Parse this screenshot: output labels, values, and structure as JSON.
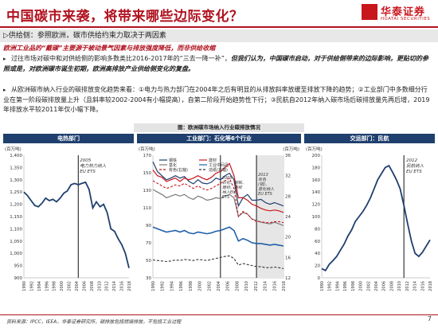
{
  "header": {
    "title": "中国碳市来袭，将带来哪些边际变化？",
    "logo_name": "华泰证券",
    "logo_sub": "HUATAI SECURITIES"
  },
  "section": {
    "label": "▷供给侧：参照欧洲，碳市供给约束力取决于两因素"
  },
  "highlight": "欧洲工业品的“戴碳”主要源于被动景气因素与排放强度降低，而非供给收缩",
  "paragraph1": {
    "part1": "过往市场对碳中和对供给侧的影响多数类比2016-2017年的“三去一降一补”，",
    "part2": "但我们认为，中国碳市启动，对于供给侧带来的边际影响，更贴切的参照或是，对欧洲碳市诞生初期，欧洲高排放产业供给侧变化的复盘。"
  },
  "paragraph2": "从欧洲碳市纳入行业的碳排放变化趋势来看：①电力与热力部门在2004年之后有明显的从排放斜率放缓至排放下降的趋势；②工业部门中多数细分行业在第一阶段碳排放量上升（且斜率较2002-2004有小幅提高），自第二阶段开始趋势性下行；③民航自2012年纳入碳市场后碳排放量先再后增，2019年排放水平较2011年仅小幅下降。",
  "figure": {
    "title": "图：欧洲碳市场纳入行业碳排放情况"
  },
  "panels": {
    "power": {
      "head": "电热部门",
      "unit": "(百万吨)",
      "annotation": [
        "2005",
        "电力热力纳入",
        "EU ETS"
      ],
      "ylim": [
        900,
        1400
      ],
      "yticks": [
        "1,400",
        "1,350",
        "1,300",
        "1,250",
        "1,200",
        "1,150",
        "1,100",
        "1,050",
        "1,000",
        "950",
        "900"
      ]
    },
    "industry": {
      "head": "工业部门：石化等6个行业",
      "unit_left": "(百万吨)",
      "unit_right": "(百万吨)",
      "legend": [
        "钢铁",
        "建材",
        "基化",
        "工业中间品",
        "有色(右轴)",
        "造纸(右轴)"
      ],
      "annot1": [
        "2005",
        "石化、钢铁、",
        "建材、造纸",
        "纳入EU",
        "ETS"
      ],
      "annot2": [
        "2013",
        "有色",
        "(铝)、",
        "基化纳入",
        "EU ETS"
      ],
      "ylim_left": [
        20,
        170
      ],
      "ylim_right": [
        12,
        36
      ],
      "yticks_left": [
        "170",
        "150",
        "130",
        "110",
        "90",
        "70",
        "50",
        "30"
      ],
      "yticks_right": [
        "36",
        "32",
        "28",
        "24",
        "20",
        "16",
        "12"
      ]
    },
    "aviation": {
      "head": "交运部门：民航",
      "unit": "(百万吨)",
      "annotation": [
        "2012",
        "民航纳入",
        "EU ETS"
      ],
      "ylim": [
        0,
        200
      ],
      "yticks": [
        "200",
        "180",
        "160",
        "140",
        "120",
        "100",
        "80",
        "60",
        "40",
        "20",
        "0"
      ]
    },
    "years": [
      "1990",
      "1992",
      "1994",
      "1996",
      "1998",
      "2000",
      "2002",
      "2004",
      "2006",
      "2008",
      "2010",
      "2012",
      "2014",
      "2016",
      "2018"
    ]
  },
  "chart_data": [
    {
      "type": "line",
      "title": "电热部门",
      "ylabel": "(百万吨)",
      "ylim": [
        900,
        1400
      ],
      "x": [
        1990,
        1991,
        1992,
        1993,
        1994,
        1995,
        1996,
        1997,
        1998,
        1999,
        2000,
        2001,
        2002,
        2003,
        2004,
        2005,
        2006,
        2007,
        2008,
        2009,
        2010,
        2011,
        2012,
        2013,
        2014,
        2015,
        2016,
        2017,
        2018,
        2019
      ],
      "series": [
        {
          "values": [
            1250,
            1235,
            1215,
            1195,
            1190,
            1205,
            1225,
            1215,
            1220,
            1210,
            1225,
            1245,
            1255,
            1280,
            1285,
            1280,
            1285,
            1290,
            1260,
            1185,
            1210,
            1190,
            1200,
            1165,
            1100,
            1090,
            1060,
            1035,
            1000,
            940
          ]
        }
      ]
    },
    {
      "type": "line",
      "title": "工业部门：石化等6个行业",
      "ylabel": "(百万吨)",
      "ylim": [
        20,
        170
      ],
      "ylim_right": [
        12,
        36
      ],
      "x": [
        1990,
        1991,
        1992,
        1993,
        1994,
        1995,
        1996,
        1997,
        1998,
        1999,
        2000,
        2001,
        2002,
        2003,
        2004,
        2005,
        2006,
        2007,
        2008,
        2009,
        2010,
        2011,
        2012,
        2013,
        2014,
        2015,
        2016,
        2017,
        2018,
        2019
      ],
      "series": [
        {
          "name": "钢铁",
          "values": [
            162,
            150,
            145,
            140,
            142,
            145,
            142,
            144,
            138,
            135,
            140,
            136,
            135,
            137,
            142,
            140,
            145,
            148,
            140,
            108,
            118,
            122,
            115,
            115,
            116,
            112,
            110,
            112,
            110,
            108
          ]
        },
        {
          "name": "建材",
          "values": [
            152,
            145,
            143,
            138,
            140,
            142,
            138,
            142,
            140,
            142,
            145,
            142,
            140,
            143,
            148,
            150,
            155,
            160,
            145,
            118,
            118,
            115,
            110,
            108,
            105,
            103,
            102,
            103,
            102,
            100
          ]
        },
        {
          "name": "基化",
          "values": [
            128,
            125,
            122,
            118,
            120,
            122,
            120,
            122,
            118,
            116,
            120,
            118,
            115,
            116,
            118,
            117,
            120,
            122,
            118,
            95,
            100,
            98,
            92,
            90,
            88,
            87,
            86,
            88,
            86,
            84
          ]
        },
        {
          "name": "工业中间品",
          "values": [
            82,
            80,
            78,
            76,
            77,
            78,
            76,
            78,
            75,
            74,
            76,
            75,
            74,
            75,
            77,
            78,
            80,
            82,
            78,
            65,
            68,
            66,
            63,
            62,
            62,
            61,
            60,
            61,
            60,
            59
          ]
        },
        {
          "name": "有色(右轴)",
          "values": [
            31,
            30.5,
            30,
            29.5,
            29.8,
            30.2,
            30,
            30.5,
            30,
            29.5,
            30,
            29.5,
            29.2,
            29.5,
            30,
            30.5,
            31,
            31.5,
            29.5,
            24,
            25,
            24.5,
            23.5,
            23,
            23,
            22.8,
            22.8,
            23,
            23,
            22.8
          ]
        },
        {
          "name": "造纸(右轴)",
          "values": [
            15.5,
            15.4,
            15.3,
            15.2,
            15.3,
            15.5,
            15.4,
            15.6,
            15.5,
            15.4,
            15.6,
            15.5,
            15.4,
            15.6,
            15.8,
            16,
            16.2,
            16.3,
            15.8,
            14.5,
            14.8,
            14.6,
            14.4,
            14.2,
            14.2,
            14,
            14,
            14.1,
            14,
            13.8
          ]
        }
      ]
    },
    {
      "type": "line",
      "title": "交运部门：民航",
      "ylabel": "(百万吨)",
      "ylim": [
        0,
        200
      ],
      "x": [
        1990,
        1991,
        1992,
        1993,
        1994,
        1995,
        1996,
        1997,
        1998,
        1999,
        2000,
        2001,
        2002,
        2003,
        2004,
        2005,
        2006,
        2007,
        2008,
        2009,
        2010,
        2011,
        2012,
        2013,
        2014,
        2015,
        2016,
        2017,
        2018,
        2019
      ],
      "series": [
        {
          "values": [
            15,
            12,
            22,
            28,
            35,
            45,
            55,
            68,
            78,
            92,
            100,
            108,
            118,
            130,
            145,
            160,
            170,
            180,
            183,
            172,
            160,
            145,
            118,
            88,
            60,
            40,
            35,
            42,
            52,
            62
          ]
        }
      ]
    }
  ],
  "footer": {
    "source": "资料来源：IPCC，IEEA，华泰证券研究所，碳排放包括燃烧排放，不包括工业过程",
    "page": "7"
  }
}
